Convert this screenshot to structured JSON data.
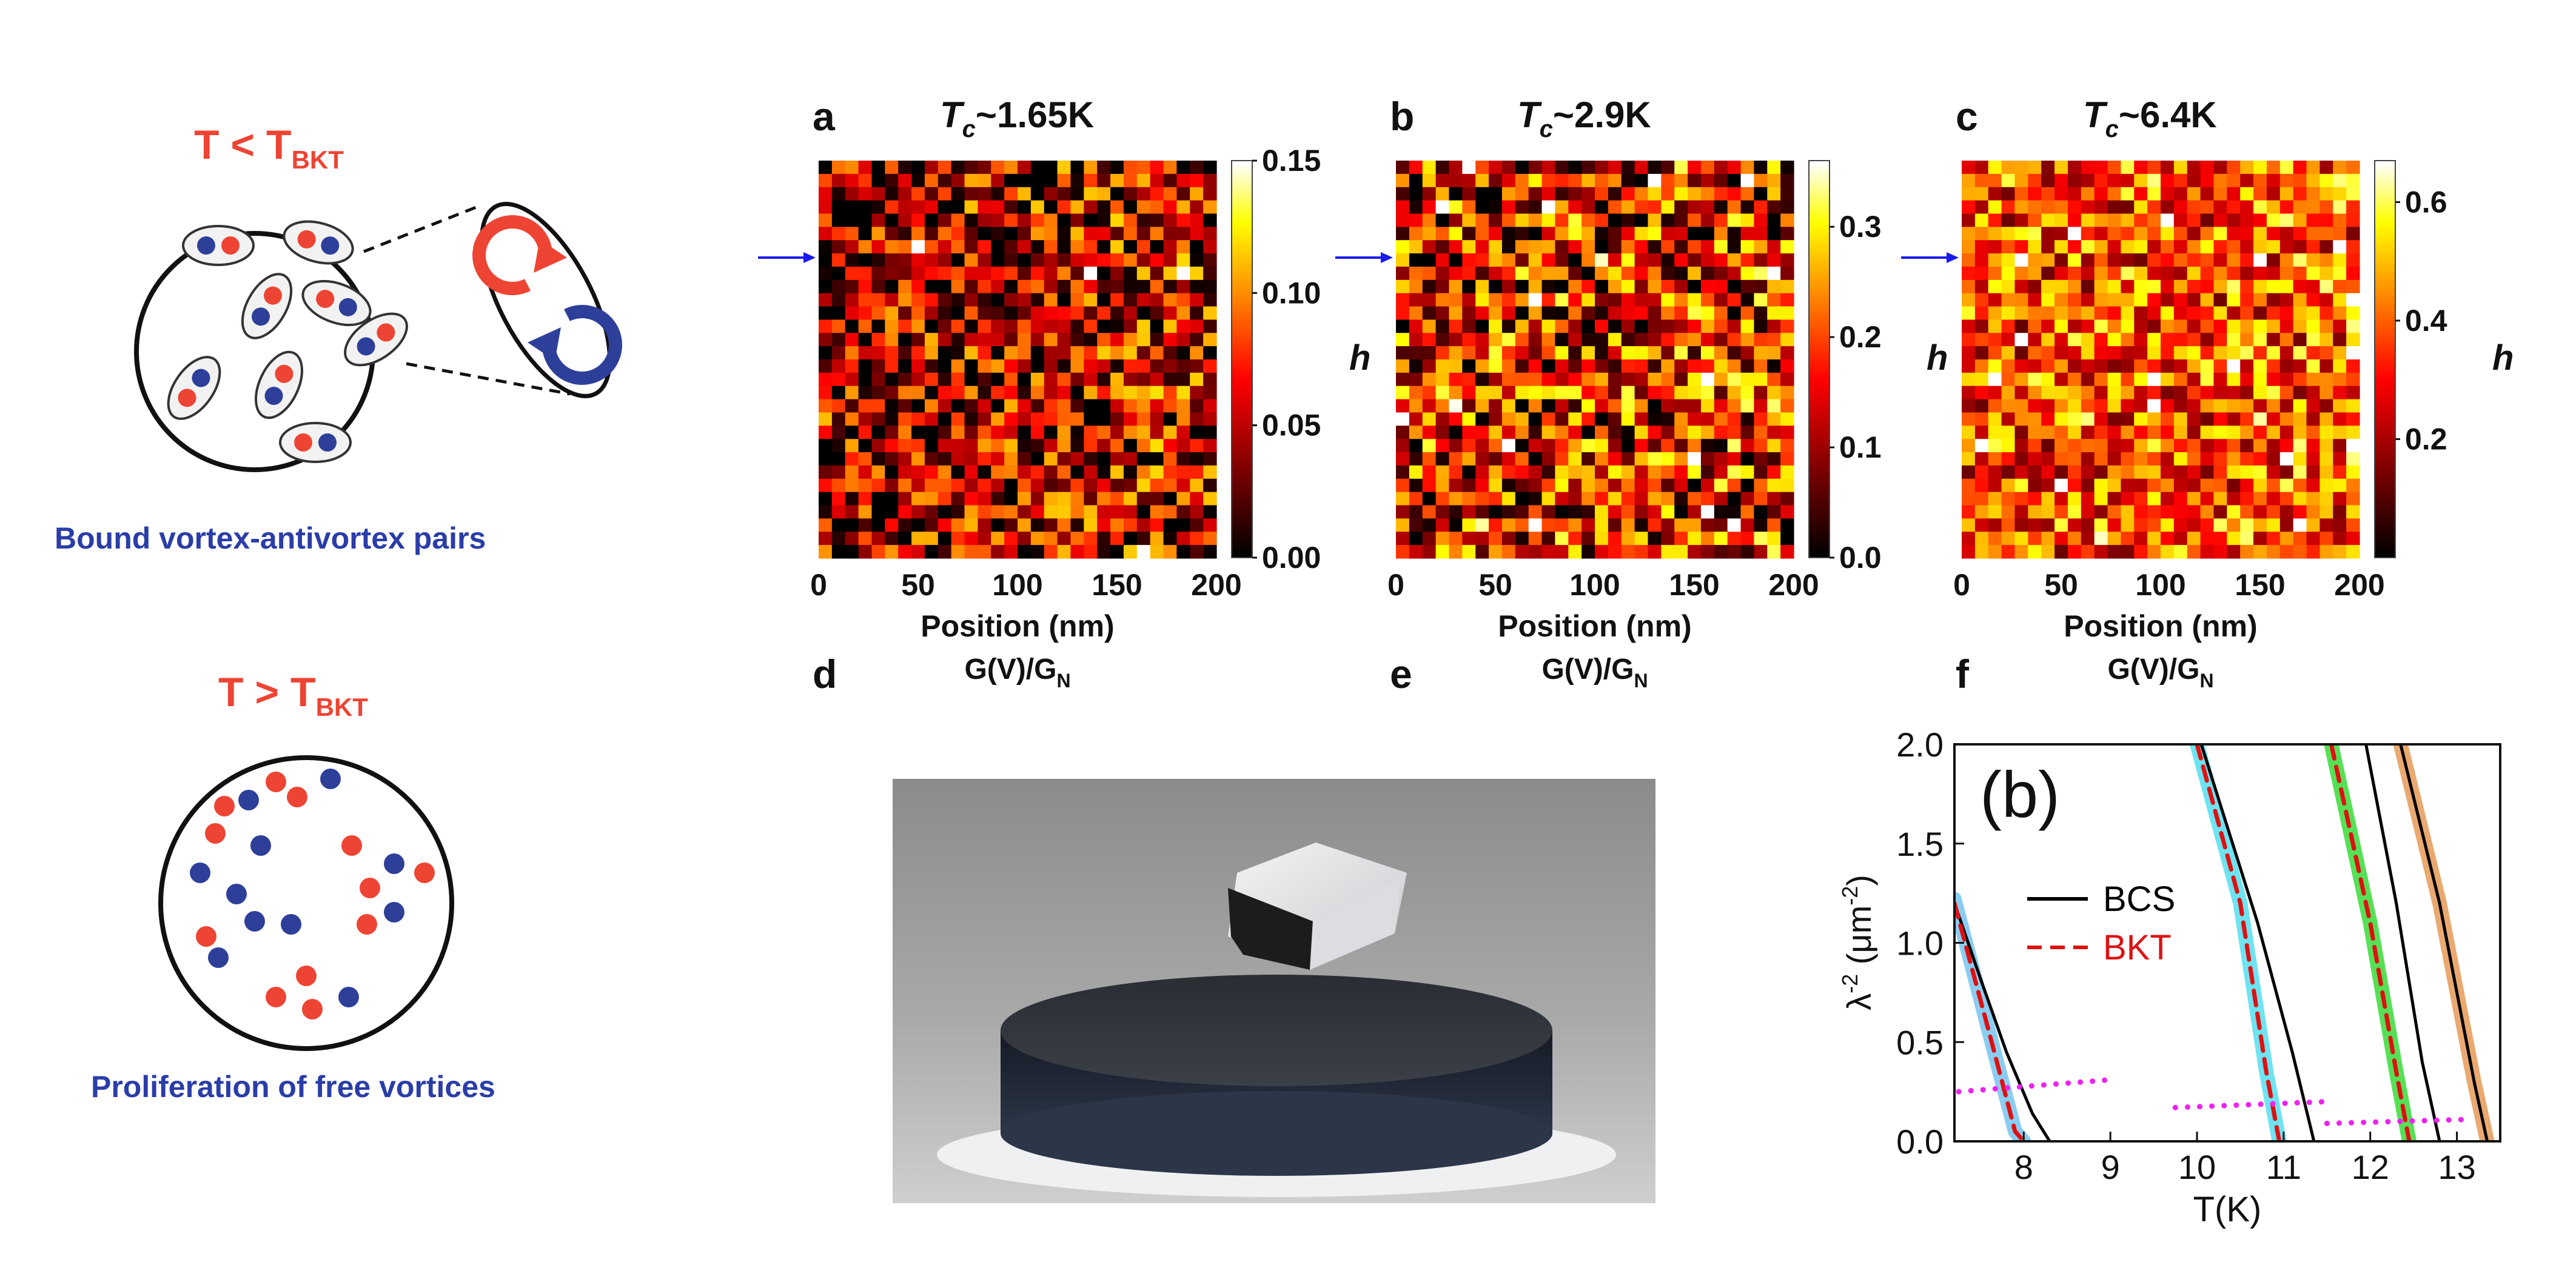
{
  "vortex": {
    "top": {
      "prefix": "T < T",
      "sub": "BKT",
      "caption": "Bound vortex-antivortex pairs"
    },
    "bottom": {
      "prefix": "T > T",
      "sub": "BKT",
      "caption": "Proliferation of free vortices"
    }
  },
  "maps": [
    {
      "letter": "a",
      "title_T": "T",
      "title_sub": "c",
      "title_rest": "~1.65K",
      "max": 0.15,
      "cbar_ticks": [
        "0.00",
        "0.05",
        "0.10",
        "0.15"
      ],
      "cbar_vals": [
        0,
        0.05,
        0.1,
        0.15
      ],
      "mean": 0.32,
      "spread": 0.55,
      "xlabel": "Position (nm)",
      "ylabel": "h",
      "gv": "G(V)/G",
      "gv_sub": "N",
      "next_letter": "d"
    },
    {
      "letter": "b",
      "title_T": "T",
      "title_sub": "c",
      "title_rest": "~2.9K",
      "max": 0.36,
      "cbar_ticks": [
        "0.0",
        "0.1",
        "0.2",
        "0.3"
      ],
      "cbar_vals": [
        0,
        0.1,
        0.2,
        0.3
      ],
      "mean": 0.42,
      "spread": 0.6,
      "xlabel": "Position (nm)",
      "ylabel": "h",
      "gv": "G(V)/G",
      "gv_sub": "N",
      "next_letter": "e"
    },
    {
      "letter": "c",
      "title_T": "T",
      "title_sub": "c",
      "title_rest": "~6.4K",
      "max": 0.67,
      "cbar_ticks": [
        "0.2",
        "0.4",
        "0.6"
      ],
      "cbar_vals": [
        0.2,
        0.4,
        0.6
      ],
      "mean": 0.55,
      "spread": 0.45,
      "xlabel": "Position (nm)",
      "ylabel": "h",
      "gv": "G(V)/G",
      "gv_sub": "N",
      "next_letter": "f"
    }
  ],
  "map_x_ticks": [
    "0",
    "50",
    "100",
    "150",
    "200"
  ],
  "chart_data": {
    "type": "line",
    "panel_label": "(b)",
    "xlabel": "T(K)",
    "ylabel_main": "λ",
    "ylabel_sup": "-2",
    "ylabel_unit": "(μm",
    "ylabel_unit_sup": "-2",
    "ylabel_close": ")",
    "xlim": [
      7.2,
      13.5
    ],
    "ylim": [
      0,
      2.0
    ],
    "x_ticks": [
      "8",
      "9",
      "10",
      "11",
      "12",
      "13"
    ],
    "x_tick_vals": [
      8,
      9,
      10,
      11,
      12,
      13
    ],
    "y_ticks": [
      "0.0",
      "0.5",
      "1.0",
      "1.5",
      "2.0"
    ],
    "y_tick_vals": [
      0,
      0.5,
      1.0,
      1.5,
      2.0
    ],
    "legend": [
      {
        "name": "BCS",
        "style": "solid",
        "color": "#000000"
      },
      {
        "name": "BKT",
        "style": "dashed",
        "color": "#dd1111"
      }
    ],
    "series": [
      {
        "kind": "data",
        "color": "#7ec8f0",
        "points": [
          [
            7.2,
            1.22
          ],
          [
            7.6,
            0.55
          ],
          [
            7.9,
            0.05
          ],
          [
            8.0,
            0
          ]
        ]
      },
      {
        "kind": "BKT",
        "color": "#dd1111",
        "points": [
          [
            7.2,
            1.2
          ],
          [
            7.6,
            0.55
          ],
          [
            7.9,
            0.05
          ],
          [
            8.0,
            0
          ]
        ]
      },
      {
        "kind": "BCS",
        "color": "#000000",
        "points": [
          [
            7.2,
            1.2
          ],
          [
            7.5,
            0.82
          ],
          [
            7.8,
            0.45
          ],
          [
            8.1,
            0.14
          ],
          [
            8.3,
            0
          ]
        ]
      },
      {
        "kind": "data",
        "color": "#5ee0f0",
        "points": [
          [
            10.0,
            2.0
          ],
          [
            10.5,
            1.2
          ],
          [
            10.8,
            0.35
          ],
          [
            10.95,
            0
          ]
        ]
      },
      {
        "kind": "BKT",
        "color": "#dd1111",
        "points": [
          [
            10.0,
            2.0
          ],
          [
            10.5,
            1.2
          ],
          [
            10.8,
            0.35
          ],
          [
            10.95,
            0
          ]
        ]
      },
      {
        "kind": "BCS",
        "color": "#000000",
        "points": [
          [
            10.05,
            2.0
          ],
          [
            10.7,
            1.1
          ],
          [
            11.1,
            0.45
          ],
          [
            11.35,
            0
          ]
        ]
      },
      {
        "kind": "data",
        "color": "#44dd44",
        "points": [
          [
            11.55,
            2.0
          ],
          [
            12.0,
            1.1
          ],
          [
            12.3,
            0.35
          ],
          [
            12.45,
            0
          ]
        ]
      },
      {
        "kind": "BKT",
        "color": "#dd1111",
        "points": [
          [
            11.55,
            2.0
          ],
          [
            12.0,
            1.1
          ],
          [
            12.3,
            0.35
          ],
          [
            12.45,
            0
          ]
        ]
      },
      {
        "kind": "BCS",
        "color": "#000000",
        "points": [
          [
            11.95,
            2.0
          ],
          [
            12.3,
            1.2
          ],
          [
            12.6,
            0.4
          ],
          [
            12.8,
            0
          ]
        ]
      },
      {
        "kind": "data",
        "color": "#e8a060",
        "points": [
          [
            12.35,
            2.0
          ],
          [
            12.8,
            1.2
          ],
          [
            13.2,
            0.3
          ],
          [
            13.35,
            0
          ]
        ]
      },
      {
        "kind": "BCS",
        "color": "#000000",
        "points": [
          [
            12.35,
            2.0
          ],
          [
            12.8,
            1.2
          ],
          [
            13.2,
            0.3
          ],
          [
            13.35,
            0
          ]
        ]
      },
      {
        "kind": "dotted",
        "color": "#ee22ee",
        "points": [
          [
            7.25,
            0.25
          ],
          [
            9.0,
            0.31
          ]
        ]
      },
      {
        "kind": "dotted",
        "color": "#ee22ee",
        "points": [
          [
            9.75,
            0.17
          ],
          [
            11.5,
            0.2
          ]
        ]
      },
      {
        "kind": "dotted",
        "color": "#ee22ee",
        "points": [
          [
            11.5,
            0.09
          ],
          [
            13.1,
            0.11
          ]
        ]
      }
    ]
  },
  "colors": {
    "arrow": "#1a1aee",
    "red_vortex": "#ee4433",
    "blue_vortex": "#2e3f9a",
    "caption": "#2a3da8",
    "tbkt": "#ee4433"
  }
}
